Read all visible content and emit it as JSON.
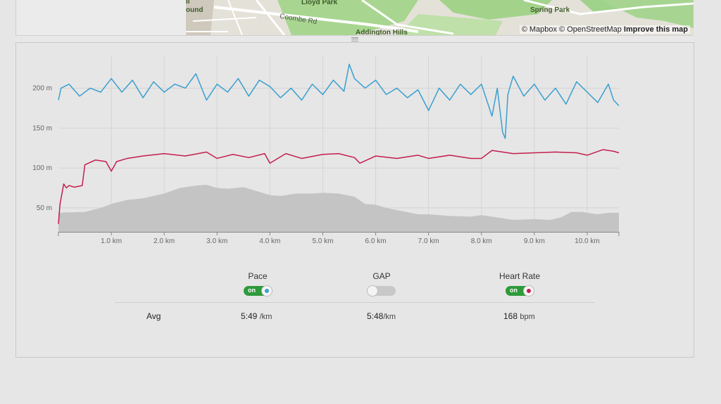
{
  "map": {
    "labels": [
      "Lloyd Park",
      "Spring Park",
      "Addington Hills",
      "Coombe Rd",
      "ll",
      "ound"
    ],
    "attribution_prefix": "© Mapbox © OpenStreetMap",
    "attribution_link": "Improve this map",
    "colors": {
      "land": "#e4e1d9",
      "park": "#9fd28a",
      "road": "#ffffff"
    }
  },
  "chart_data": {
    "type": "line",
    "x_unit": "km",
    "xlim": [
      0,
      10.6
    ],
    "ylim": [
      20,
      240
    ],
    "xticks": [
      "1.0 km",
      "2.0 km",
      "3.0 km",
      "4.0 km",
      "5.0 km",
      "6.0 km",
      "7.0 km",
      "8.0 km",
      "9.0 km",
      "10.0 km"
    ],
    "yticks": [
      "50 m",
      "100 m",
      "150 m",
      "200 m"
    ],
    "grid": true,
    "series": [
      {
        "color": "#3a9fd0",
        "x": [
          0,
          0.05,
          0.2,
          0.4,
          0.6,
          0.8,
          1.0,
          1.2,
          1.4,
          1.6,
          1.8,
          2.0,
          2.2,
          2.4,
          2.6,
          2.8,
          3.0,
          3.2,
          3.4,
          3.6,
          3.8,
          4.0,
          4.2,
          4.4,
          4.6,
          4.8,
          5.0,
          5.2,
          5.4,
          5.5,
          5.6,
          5.8,
          6.0,
          6.2,
          6.4,
          6.6,
          6.8,
          7.0,
          7.2,
          7.4,
          7.6,
          7.8,
          8.0,
          8.2,
          8.3,
          8.4,
          8.45,
          8.5,
          8.6,
          8.8,
          9.0,
          9.2,
          9.4,
          9.6,
          9.8,
          10.0,
          10.2,
          10.4,
          10.5,
          10.6
        ],
        "y": [
          185,
          200,
          205,
          190,
          200,
          195,
          212,
          195,
          210,
          188,
          208,
          195,
          205,
          200,
          218,
          185,
          205,
          195,
          212,
          190,
          210,
          202,
          188,
          200,
          185,
          205,
          192,
          210,
          196,
          230,
          212,
          200,
          210,
          192,
          200,
          188,
          198,
          172,
          200,
          185,
          205,
          192,
          205,
          165,
          200,
          145,
          137,
          192,
          215,
          190,
          205,
          185,
          200,
          180,
          208,
          195,
          182,
          205,
          185,
          178
        ]
      },
      {
        "color": "#c41e4e",
        "x": [
          0,
          0.03,
          0.1,
          0.15,
          0.2,
          0.3,
          0.45,
          0.5,
          0.7,
          0.9,
          1.0,
          1.1,
          1.3,
          1.6,
          2.0,
          2.4,
          2.8,
          3.0,
          3.3,
          3.6,
          3.9,
          4.0,
          4.3,
          4.6,
          5.0,
          5.3,
          5.6,
          5.7,
          6.0,
          6.4,
          6.8,
          7.0,
          7.4,
          7.8,
          8.0,
          8.2,
          8.4,
          8.6,
          9.0,
          9.4,
          9.8,
          10.0,
          10.3,
          10.5,
          10.6
        ],
        "y": [
          30,
          55,
          80,
          75,
          78,
          76,
          78,
          104,
          110,
          108,
          96,
          108,
          112,
          115,
          118,
          115,
          120,
          112,
          117,
          113,
          118,
          106,
          118,
          112,
          117,
          118,
          113,
          106,
          115,
          112,
          116,
          112,
          116,
          112,
          112,
          122,
          120,
          118,
          119,
          120,
          119,
          116,
          123,
          121,
          119
        ]
      },
      {
        "type": "area",
        "color": "#c4c4c4",
        "x": [
          0,
          0.5,
          0.8,
          1.0,
          1.3,
          1.6,
          2.0,
          2.3,
          2.6,
          2.8,
          3.0,
          3.2,
          3.5,
          3.7,
          4.0,
          4.2,
          4.5,
          4.8,
          5.0,
          5.3,
          5.6,
          5.8,
          6.0,
          6.2,
          6.5,
          6.8,
          7.0,
          7.4,
          7.8,
          8.0,
          8.3,
          8.6,
          9.0,
          9.3,
          9.5,
          9.7,
          9.9,
          10.2,
          10.4,
          10.6
        ],
        "y": [
          44,
          45,
          50,
          55,
          60,
          62,
          68,
          75,
          78,
          79,
          75,
          74,
          76,
          72,
          66,
          65,
          68,
          68,
          69,
          68,
          64,
          55,
          54,
          50,
          46,
          42,
          42,
          40,
          39,
          41,
          38,
          35,
          36,
          35,
          38,
          45,
          45,
          42,
          44,
          44
        ]
      }
    ]
  },
  "toggles": [
    {
      "label": "Pace",
      "state": "on",
      "state_text": "on",
      "dot_color": "#3a9fd0"
    },
    {
      "label": "GAP",
      "state": "off",
      "state_text": "",
      "dot_color": ""
    },
    {
      "label": "Heart Rate",
      "state": "on",
      "state_text": "on",
      "dot_color": "#c41e4e"
    }
  ],
  "stats": {
    "row_label": "Avg",
    "pace": {
      "value": "5:49",
      "unit": "/km"
    },
    "gap": {
      "value": "5:48",
      "unit": "/km"
    },
    "heart_rate": {
      "value": "168",
      "unit": "bpm"
    }
  }
}
